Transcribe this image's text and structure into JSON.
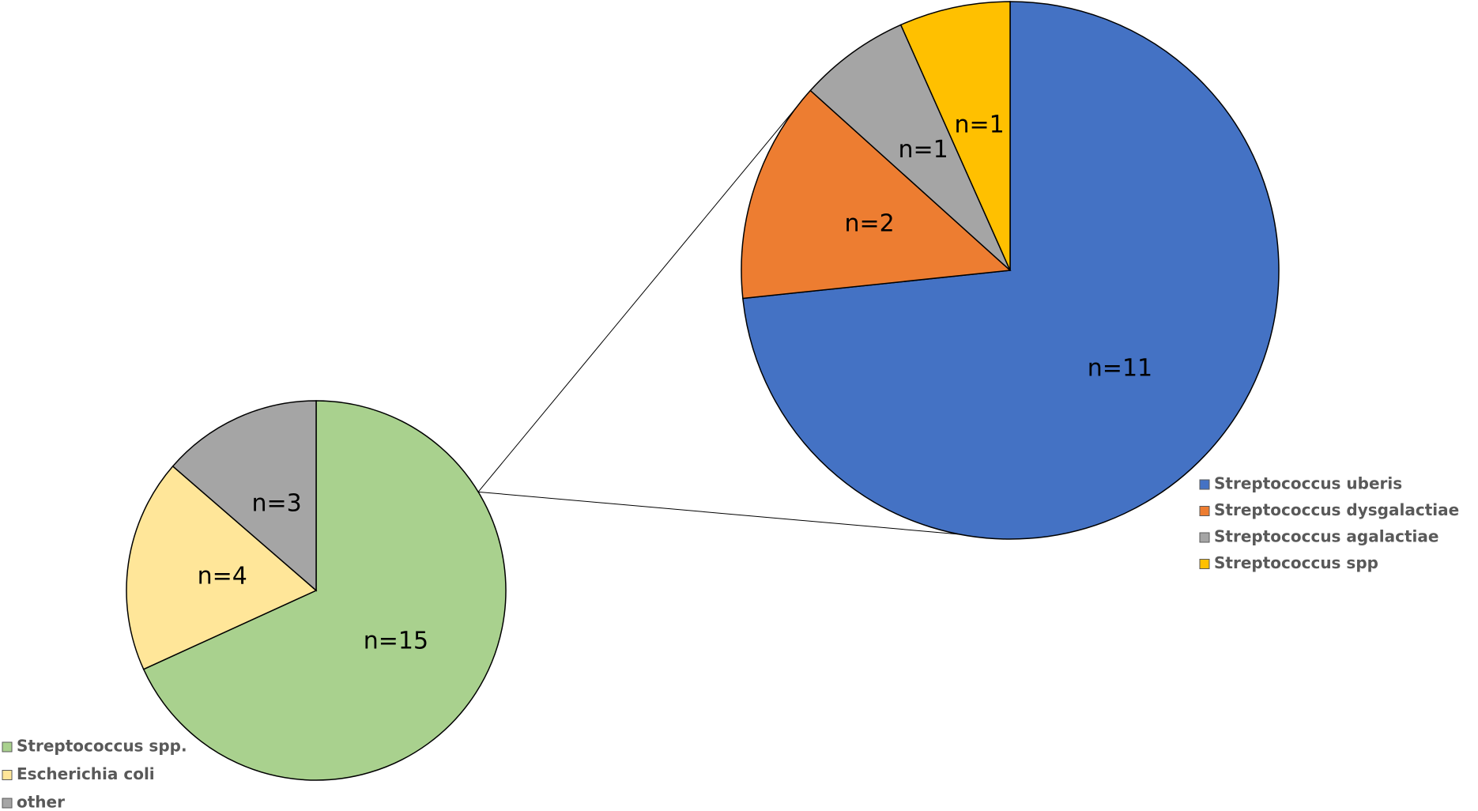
{
  "chart_data": [
    {
      "type": "pie",
      "categories": [
        "Streptococcus spp.",
        "Escherichia coli",
        "other"
      ],
      "values": [
        15,
        4,
        3
      ],
      "value_labels": [
        "n=15",
        "n=4",
        "n=3"
      ],
      "colors": [
        "#a9d18e",
        "#ffe699",
        "#a5a5a5"
      ]
    },
    {
      "type": "pie",
      "categories": [
        "Streptococcus uberis",
        "Streptococcus dysgalactiae",
        "Streptococcus agalactiae",
        "Streptococcus spp"
      ],
      "values": [
        11,
        2,
        1,
        1
      ],
      "value_labels": [
        "n=11",
        "n=2",
        "n=1",
        "n=1"
      ],
      "colors": [
        "#4472c4",
        "#ed7d31",
        "#a5a5a5",
        "#ffc000"
      ]
    }
  ]
}
